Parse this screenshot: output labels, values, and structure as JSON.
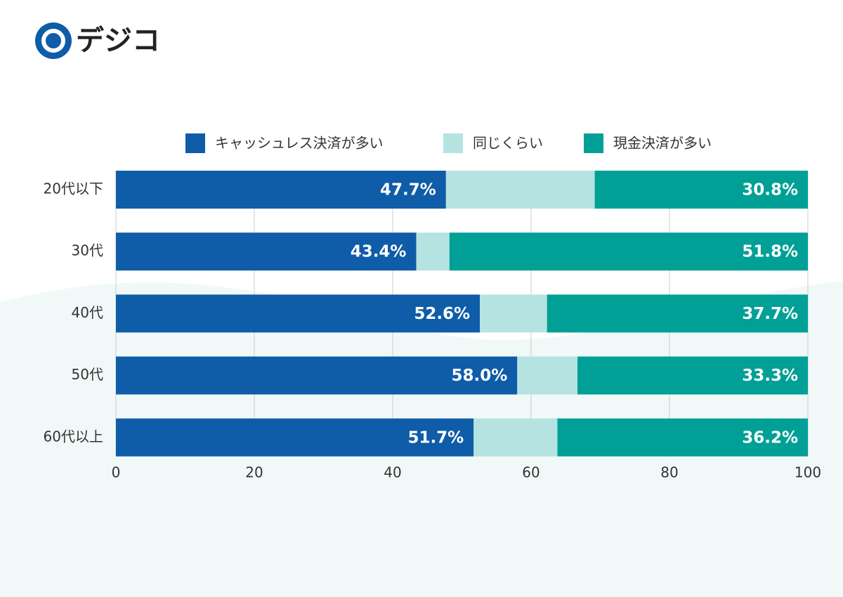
{
  "logo": "デジコ",
  "chart_data": {
    "type": "stacked-barh",
    "categories": [
      "20代以下",
      "30代",
      "40代",
      "50代",
      "60代以上"
    ],
    "series": [
      {
        "name": "キャッシュレス決済が多い",
        "color": "#0f5ca8",
        "values": [
          47.7,
          43.4,
          52.6,
          58.0,
          51.7
        ],
        "value_labels": [
          "47.7%",
          "43.4%",
          "52.6%",
          "58.0%",
          "51.7%"
        ]
      },
      {
        "name": "同じくらい",
        "color": "#b5e3e1",
        "values": [
          21.5,
          4.8,
          9.7,
          8.7,
          12.1
        ]
      },
      {
        "name": "現金決済が多い",
        "color": "#00a096",
        "values": [
          30.8,
          51.8,
          37.7,
          33.3,
          36.2
        ],
        "value_labels": [
          "30.8%",
          "51.8%",
          "37.7%",
          "33.3%",
          "36.2%"
        ]
      }
    ],
    "xlim": [
      0,
      100
    ],
    "xticks": [
      0,
      20,
      40,
      60,
      80,
      100
    ],
    "grid": true,
    "legend": "top"
  }
}
